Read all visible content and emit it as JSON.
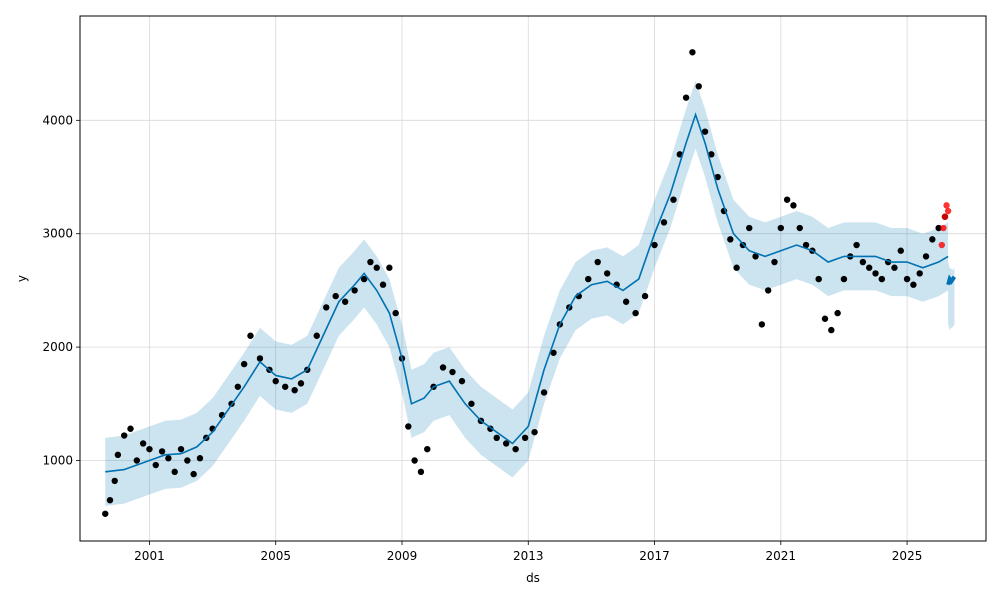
{
  "chart_data": {
    "type": "scatter",
    "title": "",
    "xlabel": "ds",
    "ylabel": "y",
    "xlim": [
      1998.8,
      2027.5
    ],
    "ylim": [
      290,
      4920
    ],
    "x_ticks": [
      2001,
      2005,
      2009,
      2013,
      2017,
      2021,
      2025
    ],
    "x_tick_labels": [
      "2001",
      "2005",
      "2009",
      "2013",
      "2017",
      "2021",
      "2025"
    ],
    "y_ticks": [
      1000,
      2000,
      3000,
      4000
    ],
    "y_tick_labels": [
      "1000",
      "2000",
      "3000",
      "4000"
    ],
    "grid": true,
    "colors": {
      "observed": "#000000",
      "forecast": "#0072B2",
      "interval": "#0072B2",
      "recent_observed": "#ff0000"
    },
    "observed": {
      "x": [
        1999.6,
        1999.75,
        1999.9,
        2000.0,
        2000.2,
        2000.4,
        2000.6,
        2000.8,
        2001.0,
        2001.2,
        2001.4,
        2001.6,
        2001.8,
        2002.0,
        2002.2,
        2002.4,
        2002.6,
        2002.8,
        2003.0,
        2003.3,
        2003.6,
        2003.8,
        2004.0,
        2004.2,
        2004.5,
        2004.8,
        2005.0,
        2005.3,
        2005.6,
        2005.8,
        2006.0,
        2006.3,
        2006.6,
        2006.9,
        2007.2,
        2007.5,
        2007.8,
        2008.0,
        2008.2,
        2008.4,
        2008.6,
        2008.8,
        2009.0,
        2009.2,
        2009.4,
        2009.6,
        2009.8,
        2010.0,
        2010.3,
        2010.6,
        2010.9,
        2011.2,
        2011.5,
        2011.8,
        2012.0,
        2012.3,
        2012.6,
        2012.9,
        2013.2,
        2013.5,
        2013.8,
        2014.0,
        2014.3,
        2014.6,
        2014.9,
        2015.2,
        2015.5,
        2015.8,
        2016.1,
        2016.4,
        2016.7,
        2017.0,
        2017.3,
        2017.6,
        2017.8,
        2018.0,
        2018.2,
        2018.4,
        2018.6,
        2018.8,
        2019.0,
        2019.2,
        2019.4,
        2019.6,
        2019.8,
        2020.0,
        2020.2,
        2020.4,
        2020.6,
        2020.8,
        2021.0,
        2021.2,
        2021.4,
        2021.6,
        2021.8,
        2022.0,
        2022.2,
        2022.4,
        2022.6,
        2022.8,
        2023.0,
        2023.2,
        2023.4,
        2023.6,
        2023.8,
        2024.0,
        2024.2,
        2024.4,
        2024.6,
        2024.8,
        2025.0,
        2025.2,
        2025.4,
        2025.6,
        2025.8,
        2026.0,
        2026.2
      ],
      "y": [
        530,
        650,
        820,
        1050,
        1220,
        1280,
        1000,
        1150,
        1100,
        960,
        1080,
        1020,
        900,
        1100,
        1000,
        880,
        1020,
        1200,
        1280,
        1400,
        1500,
        1650,
        1850,
        2100,
        1900,
        1800,
        1700,
        1650,
        1620,
        1680,
        1800,
        2100,
        2350,
        2450,
        2400,
        2500,
        2600,
        2750,
        2700,
        2550,
        2700,
        2300,
        1900,
        1300,
        1000,
        900,
        1100,
        1650,
        1820,
        1780,
        1700,
        1500,
        1350,
        1280,
        1200,
        1150,
        1100,
        1200,
        1250,
        1600,
        1950,
        2200,
        2350,
        2450,
        2600,
        2750,
        2650,
        2550,
        2400,
        2300,
        2450,
        2900,
        3100,
        3300,
        3700,
        4200,
        4600,
        4300,
        3900,
        3700,
        3500,
        3200,
        2950,
        2700,
        2900,
        3050,
        2800,
        2200,
        2500,
        2750,
        3050,
        3300,
        3250,
        3050,
        2900,
        2850,
        2600,
        2250,
        2150,
        2300,
        2600,
        2800,
        2900,
        2750,
        2700,
        2650,
        2600,
        2750,
        2700,
        2850,
        2600,
        2550,
        2650,
        2800,
        2950,
        3050,
        3150
      ]
    },
    "recent_observed": {
      "x": [
        2026.1,
        2026.15,
        2026.2,
        2026.25,
        2026.3
      ],
      "y": [
        2900,
        3050,
        3150,
        3250,
        3200
      ]
    },
    "forecast": {
      "x": [
        1999.6,
        2000.2,
        2000.6,
        2001.0,
        2001.5,
        2002.0,
        2002.5,
        2003.0,
        2003.5,
        2004.0,
        2004.5,
        2005.0,
        2005.5,
        2006.0,
        2006.5,
        2007.0,
        2007.5,
        2007.8,
        2008.2,
        2008.6,
        2009.0,
        2009.3,
        2009.7,
        2010.0,
        2010.5,
        2011.0,
        2011.5,
        2012.0,
        2012.5,
        2013.0,
        2013.5,
        2014.0,
        2014.5,
        2015.0,
        2015.5,
        2016.0,
        2016.5,
        2017.0,
        2017.5,
        2018.0,
        2018.3,
        2018.6,
        2019.0,
        2019.5,
        2020.0,
        2020.5,
        2021.0,
        2021.5,
        2022.0,
        2022.5,
        2023.0,
        2023.5,
        2024.0,
        2024.5,
        2025.0,
        2025.5,
        2026.0,
        2026.3
      ],
      "y": [
        900,
        920,
        960,
        1000,
        1050,
        1060,
        1120,
        1250,
        1450,
        1650,
        1870,
        1750,
        1720,
        1800,
        2100,
        2400,
        2550,
        2650,
        2500,
        2300,
        1900,
        1500,
        1550,
        1650,
        1700,
        1500,
        1350,
        1250,
        1150,
        1300,
        1800,
        2200,
        2450,
        2550,
        2580,
        2500,
        2600,
        3000,
        3350,
        3800,
        4050,
        3800,
        3400,
        3000,
        2850,
        2800,
        2850,
        2900,
        2850,
        2750,
        2800,
        2800,
        2800,
        2750,
        2750,
        2700,
        2750,
        2800
      ]
    },
    "forecast_future": {
      "x": [
        2026.3,
        2026.35,
        2026.4,
        2026.45,
        2026.5
      ],
      "y": [
        2550,
        2600,
        2580,
        2600,
        2620
      ]
    },
    "interval_width": 600,
    "future_interval": {
      "lower": [
        2200,
        2150,
        2170,
        2180,
        2200
      ],
      "upper": [
        2750,
        2700,
        2690,
        2680,
        2700
      ]
    }
  }
}
